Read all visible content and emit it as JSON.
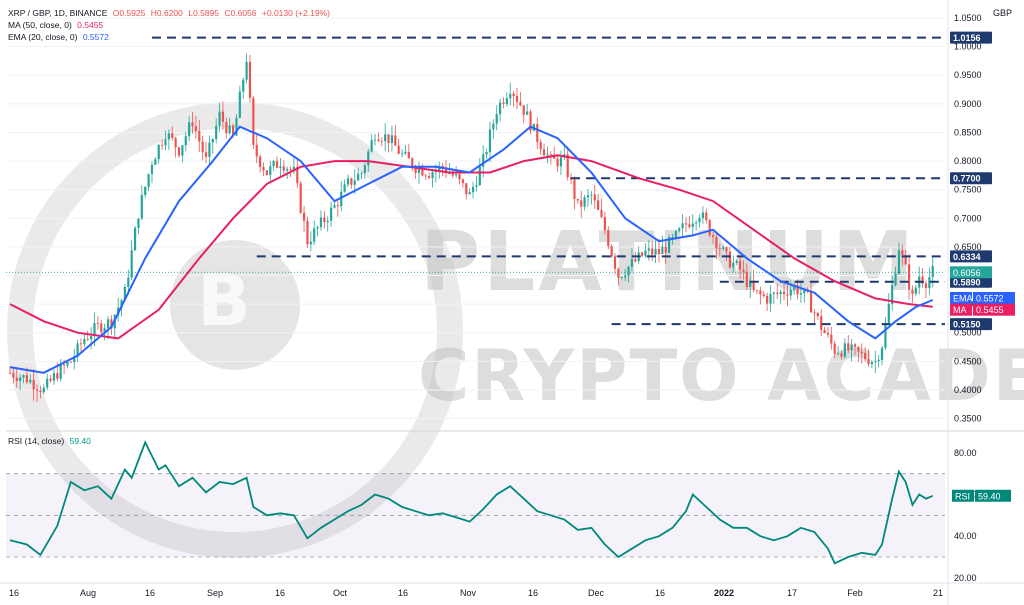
{
  "header": {
    "symbol": "XRP / GBP, 1D, BINANCE",
    "ohlc": [
      "O0.5925",
      "H0.6200",
      "L0.5895",
      "C0.6056",
      "+0.0130 (+2.19%)"
    ],
    "ma_label": "MA (50, close, 0)",
    "ma_value": "0.5455",
    "ema_label": "EMA (20, close, 0)",
    "ema_value": "0.5572",
    "rsi_label": "RSI (14, close)",
    "rsi_value": "59.40",
    "currency": "GBP"
  },
  "watermark": {
    "line1": "PLATINUM",
    "line2": "CRYPTO ACADEMY"
  },
  "colors": {
    "up": "#26a69a",
    "down": "#ef5350",
    "ema": "#2962ff",
    "ma": "#e91e63",
    "rsi": "#00897b",
    "level": "#1e3a6e"
  },
  "chart_data": [
    {
      "type": "candlestick",
      "title": "XRP / GBP, 1D, BINANCE",
      "ylim": [
        0.33,
        1.05
      ],
      "y_ticks": [
        "0.3500",
        "0.4000",
        "0.4500",
        "0.5000",
        "0.5500",
        "0.6000",
        "0.6500",
        "0.7000",
        "0.7500",
        "0.8000",
        "0.8500",
        "0.9000",
        "0.9500",
        "1.0000",
        "1.0500"
      ],
      "x_ticks": [
        "16",
        "Aug",
        "16",
        "Sep",
        "16",
        "Oct",
        "16",
        "Nov",
        "16",
        "Dec",
        "16",
        "2022",
        "17",
        "Feb",
        "21"
      ],
      "levels": [
        {
          "label": "1.0156",
          "value": 1.0156
        },
        {
          "label": "0.7700",
          "value": 0.77
        },
        {
          "label": "0.6334",
          "value": 0.6334
        },
        {
          "label": "0.5890",
          "value": 0.589
        },
        {
          "label": "0.5150",
          "value": 0.515
        }
      ],
      "tags": [
        {
          "label": "0.6056",
          "value": 0.6056
        },
        {
          "label": "EMA",
          "price": "0.5572",
          "value": 0.5572
        },
        {
          "label": "MA",
          "price": "0.5455",
          "value": 0.5455
        }
      ],
      "close_series": [
        {
          "t": 0,
          "v": 0.43
        },
        {
          "t": 5,
          "v": 0.42
        },
        {
          "t": 10,
          "v": 0.4
        },
        {
          "t": 14,
          "v": 0.43
        },
        {
          "t": 18,
          "v": 0.45
        },
        {
          "t": 22,
          "v": 0.49
        },
        {
          "t": 26,
          "v": 0.51
        },
        {
          "t": 30,
          "v": 0.52
        },
        {
          "t": 34,
          "v": 0.57
        },
        {
          "t": 38,
          "v": 0.71
        },
        {
          "t": 42,
          "v": 0.8
        },
        {
          "t": 46,
          "v": 0.85
        },
        {
          "t": 50,
          "v": 0.82
        },
        {
          "t": 54,
          "v": 0.87
        },
        {
          "t": 58,
          "v": 0.8
        },
        {
          "t": 62,
          "v": 0.88
        },
        {
          "t": 66,
          "v": 0.84
        },
        {
          "t": 70,
          "v": 0.98
        },
        {
          "t": 72,
          "v": 0.82
        },
        {
          "t": 76,
          "v": 0.78
        },
        {
          "t": 80,
          "v": 0.8
        },
        {
          "t": 84,
          "v": 0.78
        },
        {
          "t": 88,
          "v": 0.66
        },
        {
          "t": 92,
          "v": 0.69
        },
        {
          "t": 96,
          "v": 0.72
        },
        {
          "t": 100,
          "v": 0.76
        },
        {
          "t": 104,
          "v": 0.78
        },
        {
          "t": 108,
          "v": 0.85
        },
        {
          "t": 112,
          "v": 0.84
        },
        {
          "t": 116,
          "v": 0.81
        },
        {
          "t": 120,
          "v": 0.79
        },
        {
          "t": 124,
          "v": 0.78
        },
        {
          "t": 128,
          "v": 0.79
        },
        {
          "t": 132,
          "v": 0.77
        },
        {
          "t": 136,
          "v": 0.74
        },
        {
          "t": 140,
          "v": 0.8
        },
        {
          "t": 144,
          "v": 0.89
        },
        {
          "t": 148,
          "v": 0.93
        },
        {
          "t": 152,
          "v": 0.89
        },
        {
          "t": 156,
          "v": 0.84
        },
        {
          "t": 160,
          "v": 0.8
        },
        {
          "t": 164,
          "v": 0.8
        },
        {
          "t": 168,
          "v": 0.72
        },
        {
          "t": 172,
          "v": 0.74
        },
        {
          "t": 176,
          "v": 0.68
        },
        {
          "t": 180,
          "v": 0.6
        },
        {
          "t": 184,
          "v": 0.62
        },
        {
          "t": 188,
          "v": 0.64
        },
        {
          "t": 192,
          "v": 0.64
        },
        {
          "t": 196,
          "v": 0.66
        },
        {
          "t": 200,
          "v": 0.69
        },
        {
          "t": 204,
          "v": 0.71
        },
        {
          "t": 208,
          "v": 0.67
        },
        {
          "t": 212,
          "v": 0.63
        },
        {
          "t": 216,
          "v": 0.61
        },
        {
          "t": 220,
          "v": 0.57
        },
        {
          "t": 224,
          "v": 0.56
        },
        {
          "t": 228,
          "v": 0.57
        },
        {
          "t": 232,
          "v": 0.58
        },
        {
          "t": 236,
          "v": 0.56
        },
        {
          "t": 240,
          "v": 0.51
        },
        {
          "t": 244,
          "v": 0.47
        },
        {
          "t": 248,
          "v": 0.47
        },
        {
          "t": 252,
          "v": 0.46
        },
        {
          "t": 256,
          "v": 0.45
        },
        {
          "t": 258,
          "v": 0.48
        },
        {
          "t": 261,
          "v": 0.58
        },
        {
          "t": 263,
          "v": 0.65
        },
        {
          "t": 265,
          "v": 0.61
        },
        {
          "t": 267,
          "v": 0.56
        },
        {
          "t": 269,
          "v": 0.6
        },
        {
          "t": 271,
          "v": 0.59
        },
        {
          "t": 273,
          "v": 0.6056
        }
      ],
      "ema20": [
        {
          "t": 0,
          "v": 0.44
        },
        {
          "t": 10,
          "v": 0.43
        },
        {
          "t": 20,
          "v": 0.46
        },
        {
          "t": 30,
          "v": 0.51
        },
        {
          "t": 40,
          "v": 0.63
        },
        {
          "t": 50,
          "v": 0.73
        },
        {
          "t": 60,
          "v": 0.8
        },
        {
          "t": 68,
          "v": 0.86
        },
        {
          "t": 76,
          "v": 0.84
        },
        {
          "t": 86,
          "v": 0.8
        },
        {
          "t": 96,
          "v": 0.73
        },
        {
          "t": 106,
          "v": 0.76
        },
        {
          "t": 116,
          "v": 0.79
        },
        {
          "t": 126,
          "v": 0.79
        },
        {
          "t": 136,
          "v": 0.78
        },
        {
          "t": 146,
          "v": 0.82
        },
        {
          "t": 154,
          "v": 0.86
        },
        {
          "t": 162,
          "v": 0.84
        },
        {
          "t": 172,
          "v": 0.78
        },
        {
          "t": 182,
          "v": 0.7
        },
        {
          "t": 192,
          "v": 0.66
        },
        {
          "t": 202,
          "v": 0.67
        },
        {
          "t": 208,
          "v": 0.68
        },
        {
          "t": 218,
          "v": 0.63
        },
        {
          "t": 228,
          "v": 0.59
        },
        {
          "t": 238,
          "v": 0.57
        },
        {
          "t": 248,
          "v": 0.52
        },
        {
          "t": 256,
          "v": 0.49
        },
        {
          "t": 262,
          "v": 0.52
        },
        {
          "t": 268,
          "v": 0.545
        },
        {
          "t": 273,
          "v": 0.5572
        }
      ],
      "ma50": [
        {
          "t": 0,
          "v": 0.55
        },
        {
          "t": 10,
          "v": 0.52
        },
        {
          "t": 20,
          "v": 0.5
        },
        {
          "t": 32,
          "v": 0.49
        },
        {
          "t": 44,
          "v": 0.54
        },
        {
          "t": 56,
          "v": 0.63
        },
        {
          "t": 66,
          "v": 0.7
        },
        {
          "t": 76,
          "v": 0.76
        },
        {
          "t": 86,
          "v": 0.79
        },
        {
          "t": 96,
          "v": 0.8
        },
        {
          "t": 106,
          "v": 0.8
        },
        {
          "t": 118,
          "v": 0.79
        },
        {
          "t": 130,
          "v": 0.78
        },
        {
          "t": 142,
          "v": 0.78
        },
        {
          "t": 152,
          "v": 0.8
        },
        {
          "t": 162,
          "v": 0.81
        },
        {
          "t": 172,
          "v": 0.8
        },
        {
          "t": 186,
          "v": 0.77
        },
        {
          "t": 198,
          "v": 0.75
        },
        {
          "t": 208,
          "v": 0.73
        },
        {
          "t": 220,
          "v": 0.68
        },
        {
          "t": 232,
          "v": 0.63
        },
        {
          "t": 244,
          "v": 0.59
        },
        {
          "t": 256,
          "v": 0.56
        },
        {
          "t": 266,
          "v": 0.55
        },
        {
          "t": 273,
          "v": 0.5455
        }
      ]
    },
    {
      "type": "line",
      "title": "RSI (14, close)",
      "ylim": [
        18,
        90
      ],
      "y_ticks": [
        "20.00",
        "40.00",
        "60.00",
        "80.00"
      ],
      "band": [
        30,
        70
      ],
      "series": [
        {
          "name": "RSI",
          "values": [
            {
              "t": 0,
              "v": 38
            },
            {
              "t": 5,
              "v": 36
            },
            {
              "t": 9,
              "v": 31
            },
            {
              "t": 14,
              "v": 45
            },
            {
              "t": 18,
              "v": 66
            },
            {
              "t": 22,
              "v": 62
            },
            {
              "t": 26,
              "v": 64
            },
            {
              "t": 30,
              "v": 58
            },
            {
              "t": 34,
              "v": 72
            },
            {
              "t": 36,
              "v": 68
            },
            {
              "t": 40,
              "v": 85
            },
            {
              "t": 44,
              "v": 72
            },
            {
              "t": 46,
              "v": 74
            },
            {
              "t": 50,
              "v": 64
            },
            {
              "t": 54,
              "v": 68
            },
            {
              "t": 58,
              "v": 61
            },
            {
              "t": 62,
              "v": 66
            },
            {
              "t": 66,
              "v": 65
            },
            {
              "t": 70,
              "v": 68
            },
            {
              "t": 72,
              "v": 54
            },
            {
              "t": 76,
              "v": 50
            },
            {
              "t": 80,
              "v": 51
            },
            {
              "t": 84,
              "v": 50
            },
            {
              "t": 88,
              "v": 39
            },
            {
              "t": 92,
              "v": 44
            },
            {
              "t": 96,
              "v": 48
            },
            {
              "t": 100,
              "v": 52
            },
            {
              "t": 104,
              "v": 55
            },
            {
              "t": 108,
              "v": 60
            },
            {
              "t": 112,
              "v": 58
            },
            {
              "t": 116,
              "v": 54
            },
            {
              "t": 120,
              "v": 52
            },
            {
              "t": 124,
              "v": 50
            },
            {
              "t": 128,
              "v": 51
            },
            {
              "t": 132,
              "v": 49
            },
            {
              "t": 136,
              "v": 47
            },
            {
              "t": 140,
              "v": 53
            },
            {
              "t": 144,
              "v": 60
            },
            {
              "t": 148,
              "v": 64
            },
            {
              "t": 152,
              "v": 58
            },
            {
              "t": 156,
              "v": 52
            },
            {
              "t": 160,
              "v": 50
            },
            {
              "t": 164,
              "v": 48
            },
            {
              "t": 168,
              "v": 43
            },
            {
              "t": 172,
              "v": 44
            },
            {
              "t": 176,
              "v": 36
            },
            {
              "t": 180,
              "v": 30
            },
            {
              "t": 184,
              "v": 34
            },
            {
              "t": 188,
              "v": 38
            },
            {
              "t": 192,
              "v": 40
            },
            {
              "t": 196,
              "v": 44
            },
            {
              "t": 200,
              "v": 52
            },
            {
              "t": 202,
              "v": 60
            },
            {
              "t": 206,
              "v": 54
            },
            {
              "t": 210,
              "v": 48
            },
            {
              "t": 214,
              "v": 44
            },
            {
              "t": 218,
              "v": 44
            },
            {
              "t": 222,
              "v": 40
            },
            {
              "t": 226,
              "v": 38
            },
            {
              "t": 230,
              "v": 40
            },
            {
              "t": 234,
              "v": 44
            },
            {
              "t": 238,
              "v": 42
            },
            {
              "t": 242,
              "v": 34
            },
            {
              "t": 244,
              "v": 27
            },
            {
              "t": 248,
              "v": 30
            },
            {
              "t": 252,
              "v": 32
            },
            {
              "t": 256,
              "v": 31
            },
            {
              "t": 258,
              "v": 36
            },
            {
              "t": 261,
              "v": 58
            },
            {
              "t": 263,
              "v": 71
            },
            {
              "t": 265,
              "v": 66
            },
            {
              "t": 267,
              "v": 55
            },
            {
              "t": 269,
              "v": 60
            },
            {
              "t": 271,
              "v": 58
            },
            {
              "t": 273,
              "v": 59.4
            }
          ]
        }
      ]
    }
  ]
}
